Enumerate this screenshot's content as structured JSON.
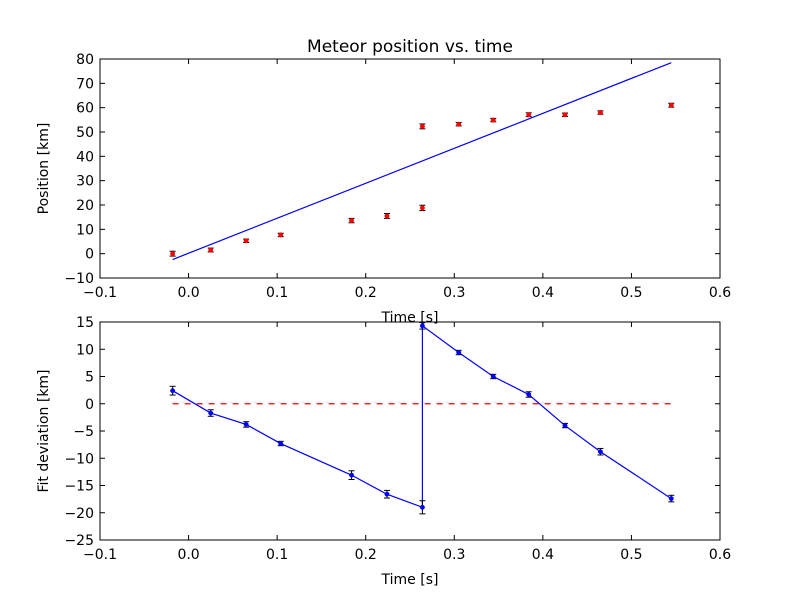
{
  "chart_data": [
    {
      "type": "scatter",
      "title": "Meteor position vs. time",
      "xlabel": "Time [s]",
      "ylabel": "Position [km]",
      "xlim": [
        -0.1,
        0.6
      ],
      "ylim": [
        -10,
        80
      ],
      "xticks": [
        "−0.1",
        "0.0",
        "0.1",
        "0.2",
        "0.3",
        "0.4",
        "0.5",
        "0.6"
      ],
      "yticks": [
        "−10",
        "0",
        "10",
        "20",
        "30",
        "40",
        "50",
        "60",
        "70",
        "80"
      ],
      "grid": false,
      "colors": {
        "points": "#ff0000",
        "fit": "#0000ff"
      },
      "series": [
        {
          "kind": "errorbar-points",
          "x": [
            -0.018,
            0.025,
            0.065,
            0.104,
            0.184,
            0.224,
            0.264,
            0.264,
            0.305,
            0.344,
            0.384,
            0.425,
            0.465,
            0.545
          ],
          "y": [
            0,
            1.5,
            5.3,
            7.7,
            13.6,
            15.5,
            18.8,
            52.3,
            53.2,
            54.9,
            57.1,
            57.1,
            58,
            61
          ],
          "yerr": [
            1,
            0.8,
            0.7,
            0.7,
            0.9,
            1,
            1.1,
            1,
            0.7,
            0.7,
            0.8,
            0.7,
            0.7,
            0.8
          ]
        },
        {
          "kind": "line",
          "x": [
            -0.018,
            0.545
          ],
          "y": [
            -2.4,
            78.5
          ]
        }
      ]
    },
    {
      "type": "line",
      "title": "",
      "xlabel": "Time [s]",
      "ylabel": "Fit deviation [km]",
      "xlim": [
        -0.1,
        0.6
      ],
      "ylim": [
        -25,
        15
      ],
      "xticks": [
        "−0.1",
        "0.0",
        "0.1",
        "0.2",
        "0.3",
        "0.4",
        "0.5",
        "0.6"
      ],
      "yticks": [
        "−25",
        "−20",
        "−15",
        "−10",
        "−5",
        "0",
        "5",
        "10",
        "15"
      ],
      "grid": false,
      "colors": {
        "deviation": "#0000ff",
        "zero": "#ff0000"
      },
      "series": [
        {
          "kind": "errorbar-line",
          "x": [
            -0.018,
            0.025,
            0.065,
            0.104,
            0.184,
            0.224,
            0.264,
            0.264,
            0.305,
            0.344,
            0.384,
            0.425,
            0.465,
            0.545
          ],
          "y": [
            2.4,
            -1.7,
            -3.8,
            -7.3,
            -13.1,
            -16.6,
            -19,
            14.3,
            9.4,
            5,
            1.7,
            -4,
            -8.8,
            -17.4
          ],
          "yerr": [
            0.8,
            0.6,
            0.5,
            0.4,
            0.8,
            0.7,
            1.2,
            0.6,
            0.4,
            0.4,
            0.5,
            0.4,
            0.6,
            0.6
          ]
        },
        {
          "kind": "dashed-line",
          "x": [
            -0.018,
            0.545
          ],
          "y": [
            0,
            0
          ]
        }
      ]
    }
  ]
}
